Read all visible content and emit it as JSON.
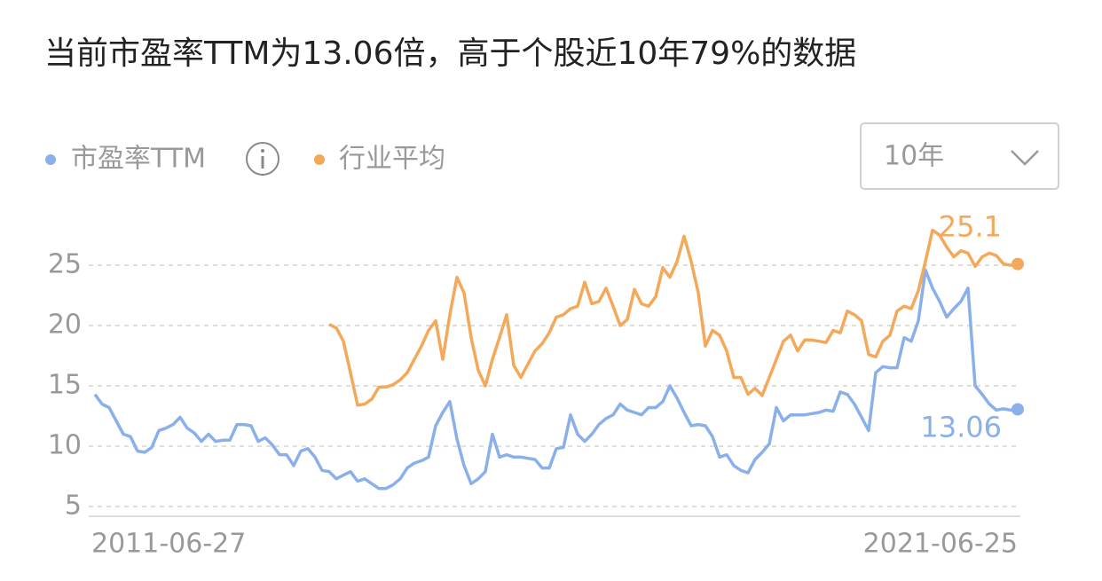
{
  "chart_data": {
    "type": "line",
    "title": "当前市盈率TTM为13.06倍，高于个股近10年79%的数据",
    "period_selector": "10年",
    "categories": [
      "2011-06-27",
      null,
      null,
      null,
      null,
      null,
      null,
      null,
      null,
      null,
      null,
      null,
      null,
      null,
      null,
      null,
      null,
      null,
      null,
      null,
      null,
      null,
      null,
      null,
      null,
      null,
      null,
      null,
      null,
      null,
      null,
      null,
      null,
      null,
      null,
      null,
      null,
      null,
      null,
      null,
      null,
      null,
      null,
      null,
      null,
      null,
      null,
      null,
      null,
      null,
      null,
      null,
      null,
      null,
      null,
      null,
      null,
      null,
      null,
      null,
      null,
      null,
      null,
      null,
      null,
      null,
      null,
      null,
      null,
      null,
      null,
      null,
      null,
      null,
      null,
      null,
      null,
      null,
      null,
      null,
      null,
      null,
      null,
      null,
      null,
      null,
      null,
      null,
      null,
      null,
      null,
      null,
      null,
      null,
      null,
      null,
      null,
      null,
      null,
      null,
      null,
      null,
      null,
      null,
      null,
      null,
      null,
      null,
      null,
      null,
      null,
      null,
      null,
      null,
      null,
      null,
      null,
      null,
      null,
      null,
      null,
      null,
      null,
      null,
      null,
      null,
      null,
      null,
      null,
      null,
      "2021-06-25"
    ],
    "series": [
      {
        "name": "市盈率TTM",
        "color": "#8ab0ea",
        "values": [
          14.3,
          13.5,
          13.2,
          12.1,
          11.0,
          10.8,
          9.6,
          9.5,
          9.9,
          11.3,
          11.5,
          11.8,
          12.4,
          11.5,
          11.1,
          10.4,
          11.0,
          10.4,
          10.5,
          10.5,
          11.8,
          11.8,
          11.7,
          10.4,
          10.7,
          10.1,
          9.3,
          9.3,
          8.4,
          9.6,
          9.8,
          9.1,
          8.0,
          7.9,
          7.3,
          7.6,
          7.9,
          7.1,
          7.3,
          6.9,
          6.5,
          6.5,
          6.8,
          7.3,
          8.2,
          8.6,
          8.8,
          9.1,
          11.7,
          12.8,
          13.7,
          10.6,
          8.4,
          6.9,
          7.3,
          7.9,
          11.0,
          9.1,
          9.3,
          9.1,
          9.1,
          9.0,
          8.9,
          8.2,
          8.2,
          9.8,
          9.9,
          12.6,
          11.0,
          10.4,
          11.0,
          11.8,
          12.3,
          12.6,
          13.5,
          13.0,
          12.8,
          12.6,
          13.2,
          13.2,
          13.7,
          15.0,
          14.0,
          12.8,
          11.7,
          11.8,
          11.7,
          10.8,
          9.1,
          9.3,
          8.4,
          8.0,
          7.8,
          8.9,
          9.5,
          10.2,
          13.2,
          12.1,
          12.6,
          12.6,
          12.6,
          12.7,
          12.8,
          13.0,
          12.9,
          14.5,
          14.3,
          13.5,
          12.4,
          11.3,
          16.1,
          16.6,
          16.5,
          16.5,
          19.0,
          18.7,
          20.4,
          24.6,
          23.1,
          22.0,
          20.7,
          21.4,
          22.0,
          23.1,
          15.0,
          14.3,
          13.5,
          13.0,
          13.1,
          13.0,
          13.06
        ]
      },
      {
        "name": "行业平均",
        "color": "#f4a85a",
        "values": [
          null,
          null,
          null,
          null,
          null,
          null,
          null,
          null,
          null,
          null,
          null,
          null,
          null,
          null,
          null,
          null,
          null,
          null,
          null,
          null,
          null,
          null,
          null,
          null,
          null,
          null,
          null,
          null,
          null,
          null,
          null,
          null,
          null,
          20.1,
          19.8,
          18.7,
          16.1,
          13.4,
          13.5,
          13.9,
          14.9,
          14.9,
          15.1,
          15.5,
          16.1,
          17.2,
          18.3,
          19.6,
          20.4,
          17.2,
          20.9,
          24.0,
          22.7,
          19.0,
          16.3,
          15.0,
          17.2,
          19.0,
          20.9,
          16.7,
          15.7,
          16.8,
          17.9,
          18.5,
          19.4,
          20.7,
          20.9,
          21.4,
          21.6,
          23.6,
          21.8,
          22.0,
          23.1,
          21.6,
          20.0,
          20.5,
          23.0,
          21.8,
          21.6,
          22.4,
          24.8,
          24.0,
          25.3,
          27.4,
          25.3,
          22.7,
          18.3,
          19.6,
          19.2,
          17.9,
          15.7,
          15.7,
          14.3,
          14.8,
          14.2,
          15.7,
          17.2,
          18.7,
          19.2,
          17.9,
          18.8,
          18.8,
          18.7,
          18.6,
          19.6,
          19.4,
          21.2,
          20.9,
          20.4,
          17.6,
          17.4,
          18.7,
          19.2,
          21.2,
          21.6,
          21.4,
          22.9,
          25.3,
          27.9,
          27.5,
          26.5,
          25.7,
          26.2,
          26.0,
          24.9,
          25.7,
          26.0,
          25.8,
          25.1,
          25.0,
          25.1
        ]
      }
    ],
    "ylim": [
      4.2,
      28.6
    ],
    "yticks": [
      5,
      10,
      15,
      20,
      25
    ],
    "grid": true
  }
}
